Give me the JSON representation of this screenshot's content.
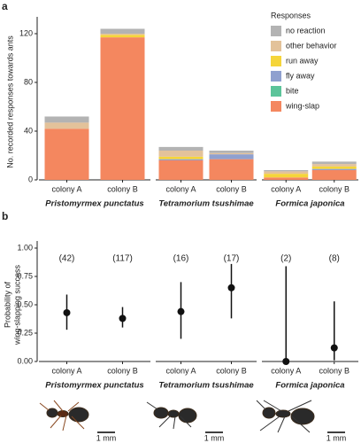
{
  "chart_data": [
    {
      "type": "stacked-bar",
      "panel": "a",
      "ylabel": "No. recorded responses towards ants",
      "groups": [
        "Pristomyrmex punctatus",
        "Tetramorium tsushimae",
        "Formica japonica"
      ],
      "categories": [
        "colony A",
        "colony B",
        "colony A",
        "colony B",
        "colony A",
        "colony B"
      ],
      "legend_title": "Responses",
      "series": [
        {
          "name": "wing-slap",
          "color": "#f4875f",
          "values": [
            42,
            117,
            16,
            17,
            2,
            8
          ]
        },
        {
          "name": "bite",
          "color": "#5cc49a",
          "values": [
            0,
            0,
            0,
            0,
            0,
            0
          ]
        },
        {
          "name": "fly away",
          "color": "#8fa0cf",
          "values": [
            0,
            0,
            1,
            4,
            0,
            1
          ]
        },
        {
          "name": "run away",
          "color": "#f5d53a",
          "values": [
            0,
            2,
            2,
            0,
            3,
            2
          ]
        },
        {
          "name": "other behavior",
          "color": "#e3c29a",
          "values": [
            5,
            1,
            5,
            1,
            2,
            2
          ]
        },
        {
          "name": "no reaction",
          "color": "#b3b3b3",
          "values": [
            5,
            4,
            3,
            2,
            1,
            2
          ]
        }
      ],
      "ylim": [
        0,
        128
      ],
      "yticks": [
        0,
        40,
        80,
        120
      ]
    },
    {
      "type": "errorbar",
      "panel": "b",
      "ylabel": [
        "Probability of",
        "wing-slapping success"
      ],
      "groups": [
        "Pristomyrmex punctatus",
        "Tetramorium tsushimae",
        "Formica japonica"
      ],
      "categories": [
        "colony A",
        "colony B",
        "colony A",
        "colony B",
        "colony A",
        "colony B"
      ],
      "values": [
        0.43,
        0.38,
        0.44,
        0.65,
        0.0,
        0.12
      ],
      "lower": [
        0.28,
        0.3,
        0.2,
        0.38,
        0.0,
        0.01
      ],
      "upper": [
        0.59,
        0.48,
        0.7,
        0.86,
        0.84,
        0.53
      ],
      "annotations": [
        "(42)",
        "(117)",
        "(16)",
        "(17)",
        "(2)",
        "(8)"
      ],
      "color": "#111111",
      "ylim": [
        0,
        1
      ],
      "yticks": [
        {
          "value": 0,
          "label": "0.00"
        },
        {
          "value": 0.25,
          "label": "0.25"
        },
        {
          "value": 0.5,
          "label": "0.50"
        },
        {
          "value": 0.75,
          "label": "0.75"
        },
        {
          "value": 1,
          "label": "1.00"
        }
      ]
    }
  ],
  "scale_labels": [
    "1 mm",
    "1 mm",
    "1 mm"
  ]
}
